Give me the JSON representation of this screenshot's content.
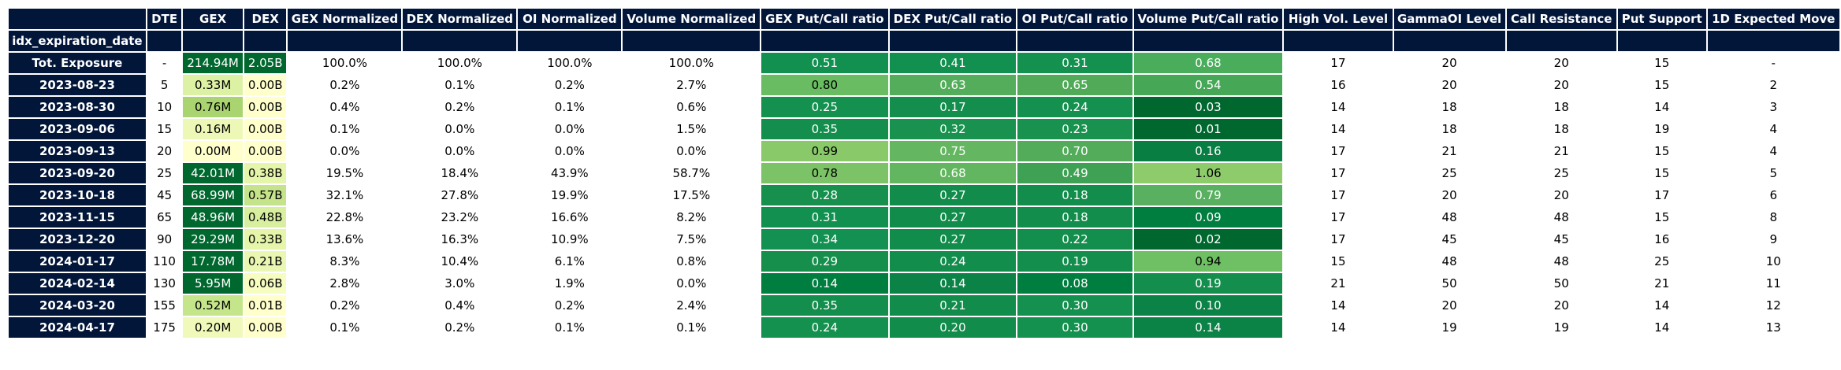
{
  "table": {
    "header_row": [
      "",
      "DTE",
      "GEX",
      "DEX",
      "GEX Normalized",
      "DEX Normalized",
      "OI Normalized",
      "Volume Normalized",
      "GEX Put/Call ratio",
      "DEX Put/Call ratio",
      "OI Put/Call ratio",
      "Volume Put/Call ratio",
      "High Vol. Level",
      "GammaOI Level",
      "Call Resistance",
      "Put Support",
      "1D Expected Move"
    ],
    "index_label": "idx_expiration_date",
    "rows": [
      {
        "label": "Tot. Exposure",
        "cells": [
          "-",
          "214.94M",
          "2.05B",
          "100.0%",
          "100.0%",
          "100.0%",
          "100.0%",
          "0.51",
          "0.41",
          "0.31",
          "0.68",
          "17",
          "20",
          "20",
          "15",
          "-"
        ]
      },
      {
        "label": "2023-08-23",
        "cells": [
          "5",
          "0.33M",
          "0.00B",
          "0.2%",
          "0.1%",
          "0.2%",
          "2.7%",
          "0.80",
          "0.63",
          "0.65",
          "0.54",
          "16",
          "20",
          "20",
          "15",
          "2"
        ]
      },
      {
        "label": "2023-08-30",
        "cells": [
          "10",
          "0.76M",
          "0.00B",
          "0.4%",
          "0.2%",
          "0.1%",
          "0.6%",
          "0.25",
          "0.17",
          "0.24",
          "0.03",
          "14",
          "18",
          "18",
          "14",
          "3"
        ]
      },
      {
        "label": "2023-09-06",
        "cells": [
          "15",
          "0.16M",
          "0.00B",
          "0.1%",
          "0.0%",
          "0.0%",
          "1.5%",
          "0.35",
          "0.32",
          "0.23",
          "0.01",
          "14",
          "18",
          "18",
          "19",
          "4"
        ]
      },
      {
        "label": "2023-09-13",
        "cells": [
          "20",
          "0.00M",
          "0.00B",
          "0.0%",
          "0.0%",
          "0.0%",
          "0.0%",
          "0.99",
          "0.75",
          "0.70",
          "0.16",
          "17",
          "21",
          "21",
          "15",
          "4"
        ]
      },
      {
        "label": "2023-09-20",
        "cells": [
          "25",
          "42.01M",
          "0.38B",
          "19.5%",
          "18.4%",
          "43.9%",
          "58.7%",
          "0.78",
          "0.68",
          "0.49",
          "1.06",
          "17",
          "25",
          "25",
          "15",
          "5"
        ]
      },
      {
        "label": "2023-10-18",
        "cells": [
          "45",
          "68.99M",
          "0.57B",
          "32.1%",
          "27.8%",
          "19.9%",
          "17.5%",
          "0.28",
          "0.27",
          "0.18",
          "0.79",
          "17",
          "20",
          "20",
          "17",
          "6"
        ]
      },
      {
        "label": "2023-11-15",
        "cells": [
          "65",
          "48.96M",
          "0.48B",
          "22.8%",
          "23.2%",
          "16.6%",
          "8.2%",
          "0.31",
          "0.27",
          "0.18",
          "0.09",
          "17",
          "48",
          "48",
          "15",
          "8"
        ]
      },
      {
        "label": "2023-12-20",
        "cells": [
          "90",
          "29.29M",
          "0.33B",
          "13.6%",
          "16.3%",
          "10.9%",
          "7.5%",
          "0.34",
          "0.27",
          "0.22",
          "0.02",
          "17",
          "45",
          "45",
          "16",
          "9"
        ]
      },
      {
        "label": "2024-01-17",
        "cells": [
          "110",
          "17.78M",
          "0.21B",
          "8.3%",
          "10.4%",
          "6.1%",
          "0.8%",
          "0.29",
          "0.24",
          "0.19",
          "0.94",
          "15",
          "48",
          "48",
          "25",
          "10"
        ]
      },
      {
        "label": "2024-02-14",
        "cells": [
          "130",
          "5.95M",
          "0.06B",
          "2.8%",
          "3.0%",
          "1.9%",
          "0.0%",
          "0.14",
          "0.14",
          "0.08",
          "0.19",
          "21",
          "50",
          "50",
          "21",
          "11"
        ]
      },
      {
        "label": "2024-03-20",
        "cells": [
          "155",
          "0.52M",
          "0.01B",
          "0.2%",
          "0.4%",
          "0.2%",
          "2.4%",
          "0.35",
          "0.21",
          "0.30",
          "0.10",
          "14",
          "20",
          "20",
          "14",
          "12"
        ]
      },
      {
        "label": "2024-04-17",
        "cells": [
          "175",
          "0.20M",
          "0.00B",
          "0.1%",
          "0.2%",
          "0.1%",
          "0.1%",
          "0.24",
          "0.20",
          "0.30",
          "0.14",
          "14",
          "19",
          "19",
          "14",
          "13"
        ]
      }
    ],
    "cell_colors": [
      [
        null,
        "#00682f",
        "#00682f",
        null,
        null,
        null,
        null,
        "#119050",
        "#119050",
        "#15914f",
        "#4aad5b",
        null,
        null,
        null,
        null,
        null
      ],
      [
        null,
        "#ddf1a4",
        "#ffffcc",
        null,
        null,
        null,
        null,
        "#69bc61",
        "#54ad5a",
        "#51aa58",
        "#46a756",
        null,
        null,
        null,
        null,
        null
      ],
      [
        null,
        "#a9d46f",
        "#ffffcc",
        null,
        null,
        null,
        null,
        "#15914f",
        "#148e4d",
        "#15914f",
        "#00682f",
        null,
        null,
        null,
        null,
        null
      ],
      [
        null,
        "#eef8b6",
        "#ffffcc",
        null,
        null,
        null,
        null,
        "#148e4d",
        "#18924e",
        "#18924e",
        "#00682f",
        null,
        null,
        null,
        null,
        null
      ],
      [
        null,
        "#ffffcc",
        "#ffffcc",
        null,
        null,
        null,
        null,
        "#89c96a",
        "#64b660",
        "#53ac59",
        "#087e43",
        null,
        null,
        null,
        null,
        null
      ],
      [
        null,
        "#00682f",
        "#e5f5a9",
        null,
        null,
        null,
        null,
        "#7cc367",
        "#63b660",
        "#3ea153",
        "#8dcb6b",
        null,
        null,
        null,
        null,
        null
      ],
      [
        null,
        "#00682f",
        "#c5e38b",
        null,
        null,
        null,
        null,
        "#17904e",
        "#128c4b",
        "#138d4c",
        "#58b060",
        null,
        null,
        null,
        null,
        null
      ],
      [
        null,
        "#00682f",
        "#d8ef9f",
        null,
        null,
        null,
        null,
        "#119050",
        "#128c4b",
        "#138d4c",
        "#007e3f",
        null,
        null,
        null,
        null,
        null
      ],
      [
        null,
        "#00682f",
        "#e5f5a9",
        null,
        null,
        null,
        null,
        "#129152",
        "#128c4b",
        "#148e4d",
        "#00682f",
        null,
        null,
        null,
        null,
        null
      ],
      [
        null,
        "#00682f",
        "#eaf7b2",
        null,
        null,
        null,
        null,
        "#168f4c",
        "#138d4c",
        "#148e4d",
        "#6fbf64",
        null,
        null,
        null,
        null,
        null
      ],
      [
        null,
        "#00682f",
        "#f7fcc0",
        null,
        null,
        null,
        null,
        "#007e3f",
        "#0b8346",
        "#007e3f",
        "#148e4d",
        null,
        null,
        null,
        null,
        null
      ],
      [
        null,
        "#c5e58a",
        "#ffffcc",
        null,
        null,
        null,
        null,
        "#148e4d",
        "#128c4b",
        "#15914f",
        "#0b8346",
        null,
        null,
        null,
        null,
        null
      ],
      [
        null,
        "#f0f9b9",
        "#ffffcc",
        null,
        null,
        null,
        null,
        "#15914f",
        "#128c4b",
        "#15914f",
        "#0b8346",
        null,
        null,
        null,
        null,
        null
      ]
    ],
    "light_cells": [
      [
        4,
        7
      ]
    ]
  }
}
